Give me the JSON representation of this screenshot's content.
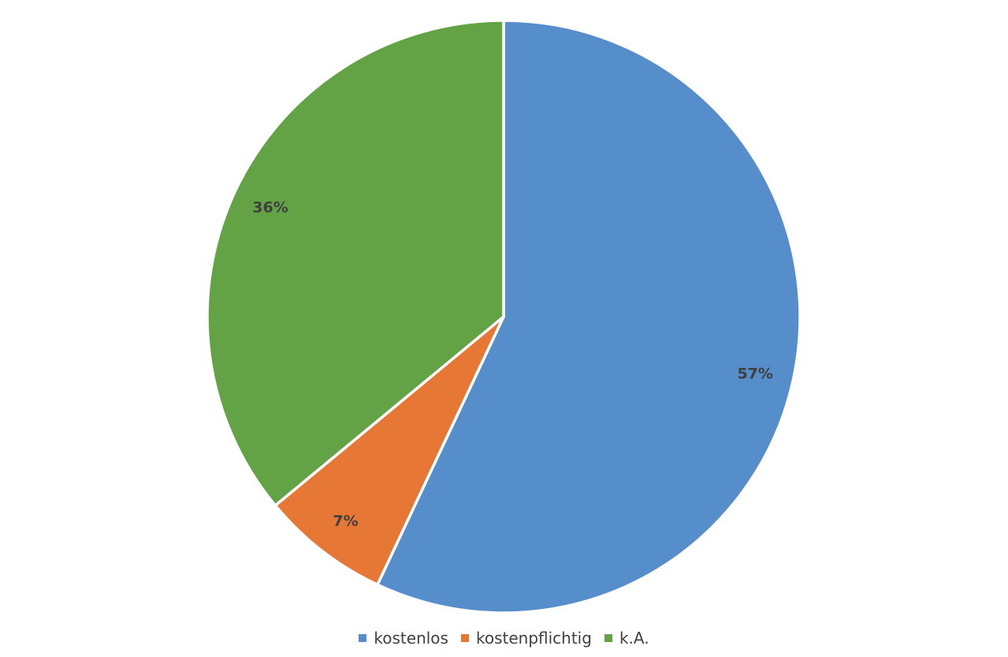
{
  "chart_data": {
    "type": "pie",
    "title": "",
    "categories": [
      "kostenlos",
      "kostenpflichtig",
      "k.A."
    ],
    "values": [
      57,
      7,
      36
    ],
    "labels": [
      "57%",
      "7%",
      "36%"
    ],
    "colors": [
      "#558ecb",
      "#e77735",
      "#64a345"
    ],
    "legend_position": "bottom",
    "start_angle": "12 o'clock",
    "direction": "clockwise"
  },
  "legend": {
    "items": [
      {
        "label": "kostenlos",
        "color": "#558ecb"
      },
      {
        "label": "kostenpflichtig",
        "color": "#e77735"
      },
      {
        "label": "k.A.",
        "color": "#64a345"
      }
    ]
  }
}
